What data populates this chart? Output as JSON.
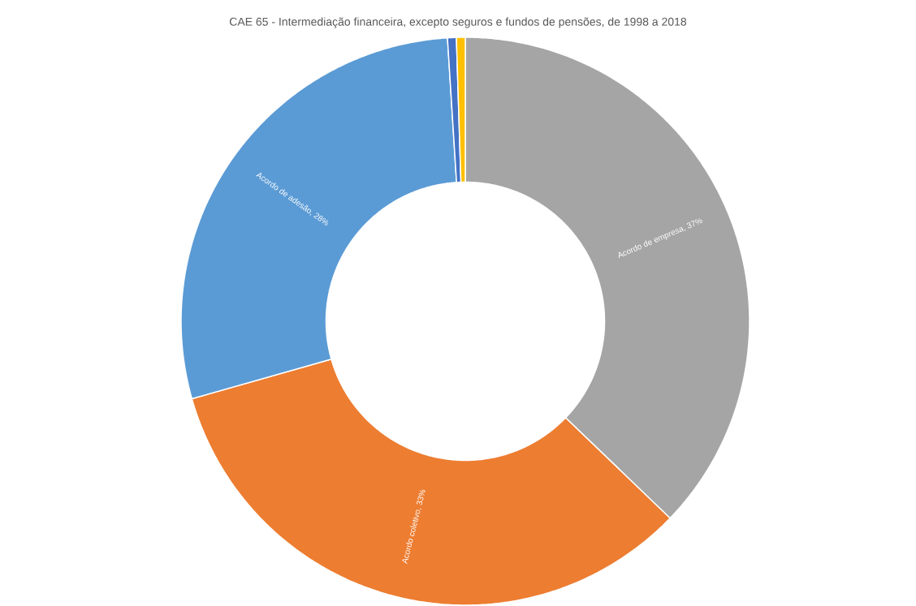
{
  "chart_data": {
    "type": "donut",
    "title": "CAE 65 - Intermediação financeira, excepto seguros e fundos de pensões, de 1998 a 2018",
    "categories": [
      "Acordo de empresa",
      "Acordo coletivo",
      "Acordo de adesão",
      null,
      null
    ],
    "values": [
      37.2,
      33.4,
      28.4,
      0.5,
      0.5
    ],
    "colors": [
      "#a5a5a5",
      "#ed7d31",
      "#5b9bd5",
      "#4472c4",
      "#ffc000"
    ],
    "value_labels": [
      ", 37%",
      ", 33%",
      ", 28%",
      null,
      null
    ]
  }
}
